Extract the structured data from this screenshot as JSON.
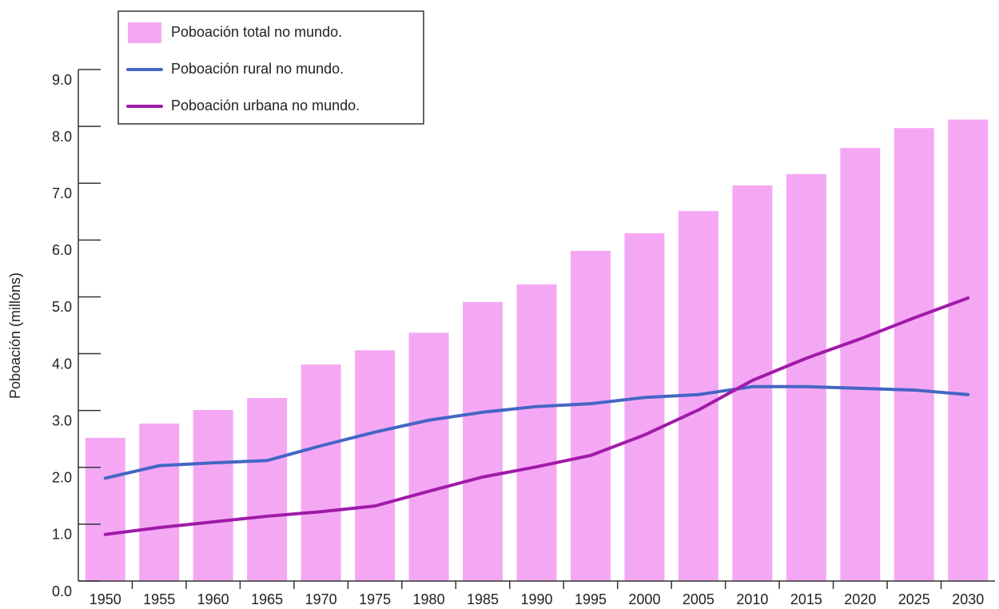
{
  "chart_data": {
    "type": "bar",
    "y_label": "Poboación (millóns)",
    "categories": [
      "1950",
      "1955",
      "1960",
      "1965",
      "1970",
      "1975",
      "1980",
      "1985",
      "1990",
      "1995",
      "2000",
      "2005",
      "2010",
      "2015",
      "2020",
      "2025",
      "2030"
    ],
    "series": [
      {
        "name": "Poboación total no mundo.",
        "type": "bar",
        "color": "#f4a8f4",
        "values": [
          2.52,
          2.77,
          3.01,
          3.22,
          3.81,
          4.06,
          4.37,
          4.91,
          5.22,
          5.81,
          6.12,
          6.51,
          6.96,
          7.16,
          7.62,
          7.97,
          8.12
        ]
      },
      {
        "name": "Poboación rural no mundo.",
        "type": "line",
        "color": "#4466c4",
        "values": [
          1.81,
          2.03,
          2.08,
          2.12,
          2.38,
          2.62,
          2.83,
          2.97,
          3.07,
          3.12,
          3.23,
          3.28,
          3.42,
          3.42,
          3.39,
          3.36,
          3.28
        ]
      },
      {
        "name": "Poboación urbana no mundo.",
        "type": "line",
        "color": "#a01aa8",
        "values": [
          0.82,
          0.94,
          1.04,
          1.14,
          1.22,
          1.32,
          1.58,
          1.83,
          2.01,
          2.21,
          2.57,
          3.01,
          3.53,
          3.92,
          4.26,
          4.63,
          4.98
        ]
      }
    ],
    "ylim": [
      0,
      9
    ],
    "yticks": [
      {
        "value": 0,
        "label": "0.0"
      },
      {
        "value": 1,
        "label": "1.0"
      },
      {
        "value": 2,
        "label": "2.0"
      },
      {
        "value": 3,
        "label": "3.0"
      },
      {
        "value": 4,
        "label": "4.0"
      },
      {
        "value": 5,
        "label": "5.0"
      },
      {
        "value": 6,
        "label": "6.0"
      },
      {
        "value": 7,
        "label": "7.0"
      },
      {
        "value": 8,
        "label": "8.0"
      },
      {
        "value": 9,
        "label": "9.0"
      }
    ],
    "legend": "top-left"
  }
}
